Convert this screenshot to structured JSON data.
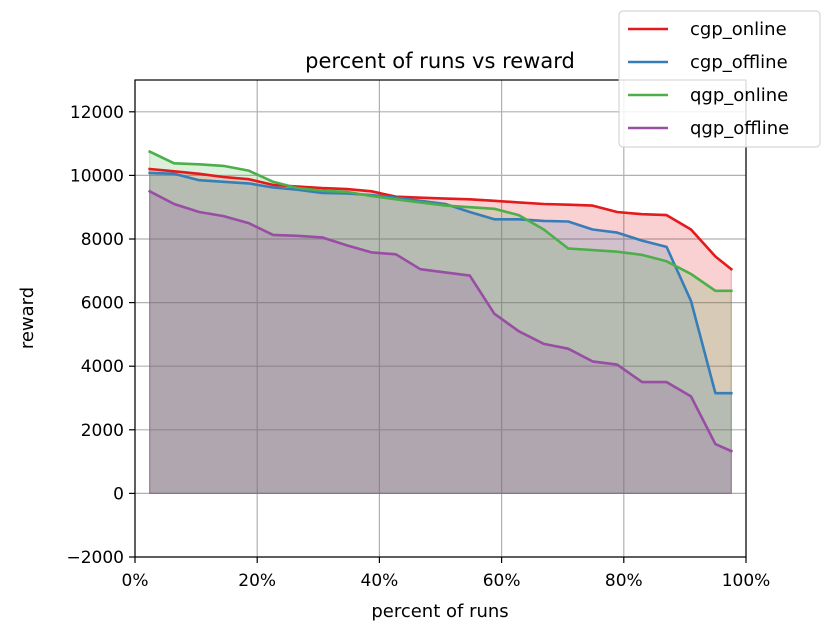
{
  "chart_data": {
    "type": "line",
    "title": "percent of runs vs reward",
    "xlabel": "percent of runs",
    "ylabel": "reward",
    "xlim": [
      0,
      100
    ],
    "ylim": [
      -2000,
      13000
    ],
    "x_ticks": [
      0,
      20,
      40,
      60,
      80,
      100
    ],
    "x_tick_labels": [
      "0%",
      "20%",
      "40%",
      "60%",
      "80%",
      "100%"
    ],
    "y_ticks": [
      -2000,
      0,
      2000,
      4000,
      6000,
      8000,
      10000,
      12000
    ],
    "y_tick_labels": [
      "−2000",
      "0",
      "2000",
      "4000",
      "6000",
      "8000",
      "10000",
      "12000"
    ],
    "grid": true,
    "legend_position": "top-right",
    "fill_to_zero": true,
    "x": [
      2.4,
      6.4,
      10.5,
      14.5,
      18.6,
      22.6,
      26.6,
      30.6,
      34.7,
      38.7,
      42.7,
      46.7,
      50.8,
      54.8,
      58.8,
      62.8,
      66.9,
      70.9,
      74.9,
      78.9,
      83.0,
      87.0,
      91.0,
      95.0,
      97.6
    ],
    "series": [
      {
        "name": "cgp_online",
        "color": "#e41a1c",
        "values": [
          10200,
          10130,
          10050,
          9950,
          9880,
          9700,
          9650,
          9600,
          9570,
          9500,
          9330,
          9300,
          9270,
          9250,
          9200,
          9150,
          9100,
          9080,
          9050,
          8850,
          8780,
          8750,
          8300,
          7450,
          7050
        ]
      },
      {
        "name": "cgp_offline",
        "color": "#377eb8",
        "values": [
          10080,
          10050,
          9850,
          9800,
          9750,
          9620,
          9550,
          9450,
          9430,
          9380,
          9300,
          9200,
          9100,
          8850,
          8620,
          8620,
          8570,
          8550,
          8300,
          8200,
          7950,
          7750,
          6050,
          3150,
          3150
        ]
      },
      {
        "name": "qgp_online",
        "color": "#4daf4a",
        "values": [
          10750,
          10380,
          10350,
          10300,
          10150,
          9800,
          9600,
          9520,
          9480,
          9350,
          9250,
          9150,
          9050,
          9000,
          8950,
          8750,
          8300,
          7700,
          7650,
          7600,
          7500,
          7300,
          6900,
          6370,
          6370
        ]
      },
      {
        "name": "qgp_offline",
        "color": "#984ea3",
        "values": [
          9500,
          9100,
          8850,
          8720,
          8500,
          8130,
          8100,
          8050,
          7800,
          7580,
          7520,
          7050,
          6950,
          6850,
          5650,
          5100,
          4700,
          4550,
          4150,
          4050,
          3500,
          3500,
          3050,
          1550,
          1330
        ]
      }
    ]
  }
}
